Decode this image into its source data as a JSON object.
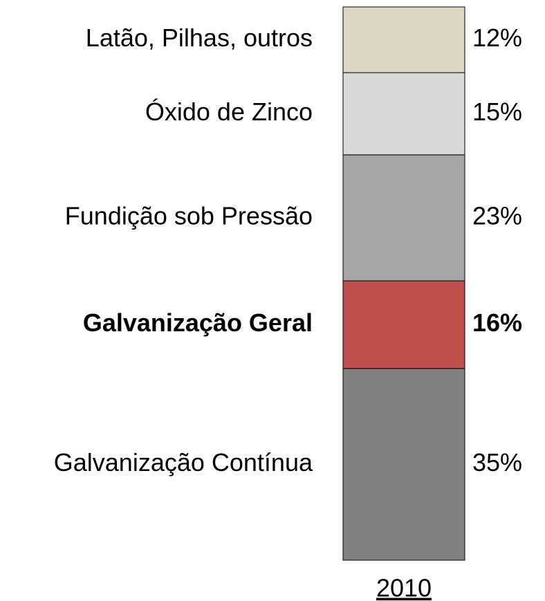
{
  "chart_data": {
    "type": "stacked_bar",
    "categories": [
      "2010"
    ],
    "series": [
      {
        "name": "Galvanização Contínua",
        "color": "#808080",
        "values": [
          35
        ],
        "value_labels": [
          "35%"
        ]
      },
      {
        "name": "Galvanização Geral",
        "color": "#c0504d",
        "values": [
          16
        ],
        "value_labels": [
          "16%"
        ],
        "label_color": "#c00000",
        "bold": true
      },
      {
        "name": "Fundição sob Pressão",
        "color": "#a6a6a6",
        "values": [
          23
        ],
        "value_labels": [
          "23%"
        ]
      },
      {
        "name": "Óxido de Zinco",
        "color": "#d9d9d9",
        "values": [
          15
        ],
        "value_labels": [
          "15%"
        ]
      },
      {
        "name": "Latão, Pilhas, outros",
        "color": "#ddd8c4",
        "values": [
          12
        ],
        "value_labels": [
          "12%"
        ]
      }
    ]
  }
}
